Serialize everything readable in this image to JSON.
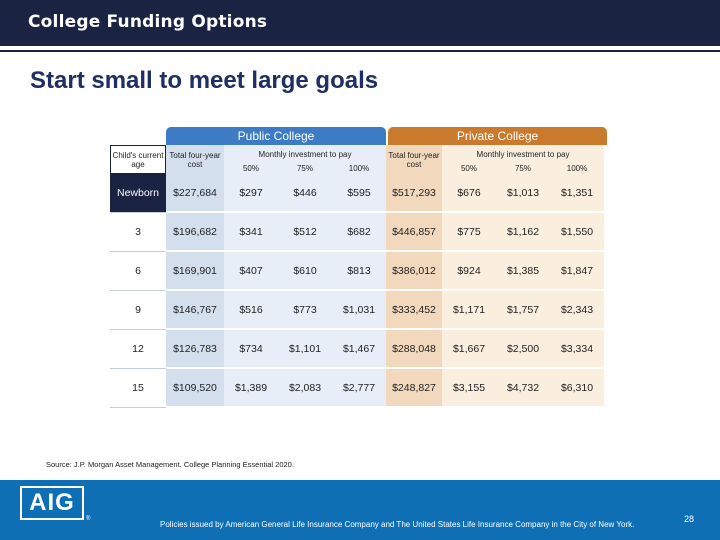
{
  "header": {
    "title": "College Funding Options"
  },
  "heading": "Start small to meet large goals",
  "groups": {
    "public": "Public College",
    "private": "Private College"
  },
  "columns": {
    "age": "Child's current age",
    "total": "Total four-year cost",
    "monthly": "Monthly investment to pay",
    "pcts": [
      "50%",
      "75%",
      "100%"
    ]
  },
  "rows": [
    {
      "age": "Newborn",
      "pub_total": "$227,684",
      "pub": [
        "$297",
        "$446",
        "$595"
      ],
      "pri_total": "$517,293",
      "pri": [
        "$676",
        "$1,013",
        "$1,351"
      ]
    },
    {
      "age": "3",
      "pub_total": "$196,682",
      "pub": [
        "$341",
        "$512",
        "$682"
      ],
      "pri_total": "$446,857",
      "pri": [
        "$775",
        "$1,162",
        "$1,550"
      ]
    },
    {
      "age": "6",
      "pub_total": "$169,901",
      "pub": [
        "$407",
        "$610",
        "$813"
      ],
      "pri_total": "$386,012",
      "pri": [
        "$924",
        "$1,385",
        "$1,847"
      ]
    },
    {
      "age": "9",
      "pub_total": "$146,767",
      "pub": [
        "$516",
        "$773",
        "$1,031"
      ],
      "pri_total": "$333,452",
      "pri": [
        "$1,171",
        "$1,757",
        "$2,343"
      ]
    },
    {
      "age": "12",
      "pub_total": "$126,783",
      "pub": [
        "$734",
        "$1,101",
        "$1,467"
      ],
      "pri_total": "$288,048",
      "pri": [
        "$1,667",
        "$2,500",
        "$3,334"
      ]
    },
    {
      "age": "15",
      "pub_total": "$109,520",
      "pub": [
        "$1,389",
        "$2,083",
        "$2,777"
      ],
      "pri_total": "$248,827",
      "pri": [
        "$3,155",
        "$4,732",
        "$6,310"
      ]
    }
  ],
  "source": "Source: J.P. Morgan Asset Management. College Planning Essential 2020.",
  "footer": {
    "logo": "AIG",
    "trademark": "®",
    "policy": "Policies issued by American General Life Insurance Company and The United States Life Insurance Company in the City of New York.",
    "page": "28"
  },
  "colors": {
    "navy": "#1a2342",
    "public": "#3d7cc4",
    "private": "#c97a2c",
    "footer": "#0e6fb5"
  }
}
